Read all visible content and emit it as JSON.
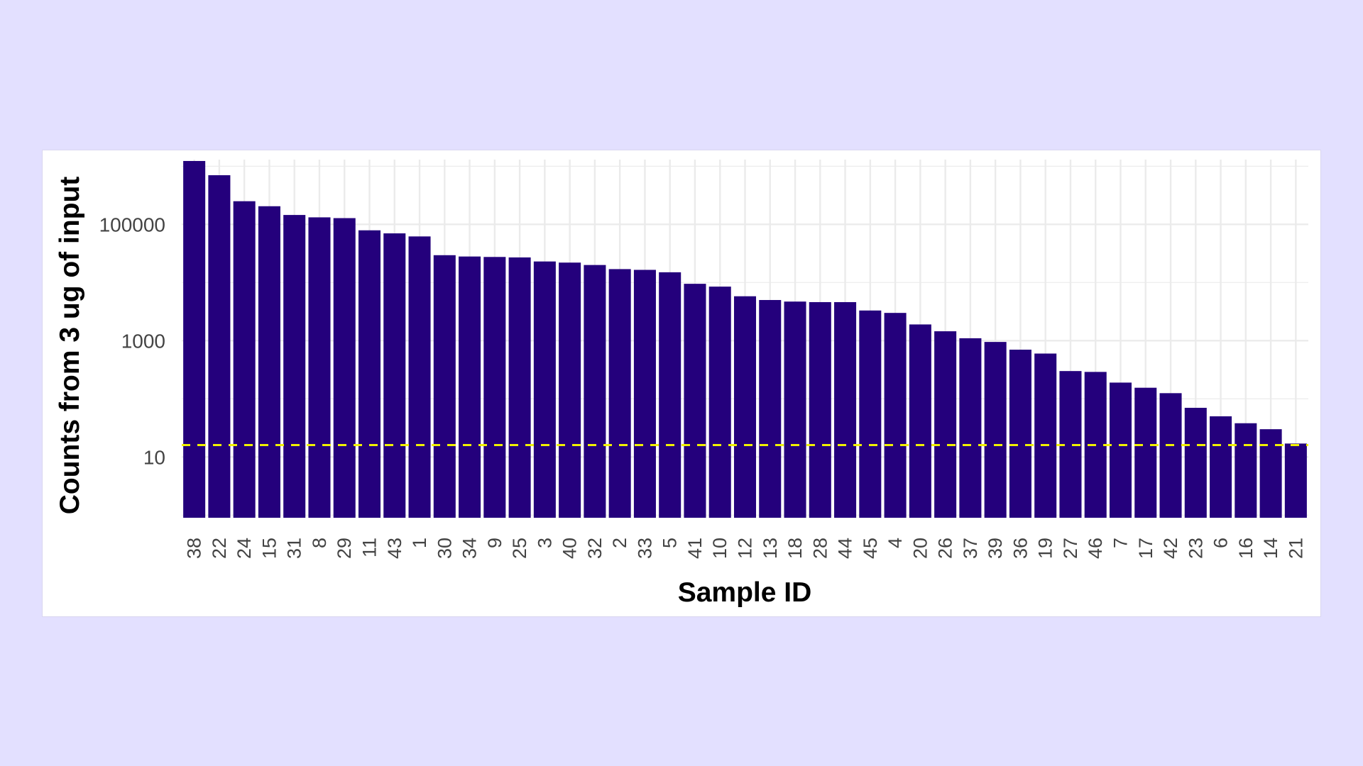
{
  "chart_data": {
    "type": "bar",
    "xlabel": "Sample ID",
    "ylabel": "Counts from 3 ug of input",
    "yscale": "log10",
    "ylim": [
      0.9,
      1300000
    ],
    "yticks": [
      10,
      1000,
      100000
    ],
    "ytick_labels": [
      "10",
      "1000",
      "100000"
    ],
    "grid": true,
    "categories": [
      "38",
      "22",
      "24",
      "15",
      "31",
      "8",
      "29",
      "11",
      "43",
      "1",
      "30",
      "34",
      "9",
      "25",
      "3",
      "40",
      "32",
      "2",
      "33",
      "5",
      "41",
      "10",
      "12",
      "13",
      "18",
      "28",
      "44",
      "45",
      "4",
      "20",
      "26",
      "37",
      "39",
      "36",
      "19",
      "27",
      "46",
      "7",
      "17",
      "42",
      "23",
      "6",
      "16",
      "14",
      "21"
    ],
    "values": [
      1230000,
      700000,
      250000,
      205000,
      145000,
      132000,
      128000,
      79000,
      70000,
      62000,
      29500,
      28000,
      27500,
      27000,
      23000,
      22000,
      20000,
      17000,
      16500,
      15000,
      9500,
      8500,
      5800,
      5000,
      4700,
      4600,
      4600,
      3300,
      3000,
      1900,
      1450,
      1100,
      950,
      700,
      600,
      300,
      290,
      190,
      155,
      125,
      70,
      50,
      38,
      30,
      17
    ],
    "reference_line": {
      "value": 16,
      "style": "dashed",
      "color": "#f0f000"
    },
    "colors": {
      "bar": "#24007c",
      "grid": "#ebebeb"
    }
  }
}
